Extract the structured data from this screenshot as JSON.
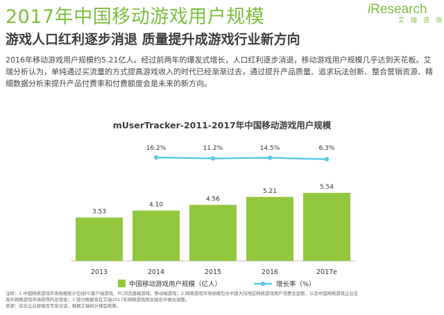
{
  "header": {
    "title": "2017年中国移动游戏用户规模",
    "subtitle": "游戏人口红利逐步消退  质量提升成游戏行业新方向",
    "brand": {
      "word_i": "i",
      "word_rest": "Research",
      "sub": "艾瑞咨询"
    },
    "accent_color": "#7dbf3c"
  },
  "paragraph": "2016年移动游戏用户规模约5.21亿人。经过前两年的爆发式增长，人口红利逐步消退，移动游戏用户规模几乎达到天花板。艾瑞分析认为，单纯通过买流量的方式提高游戏收入的时代已经渐渐过去，通过提升产品质量、追求玩法创新、整合营销资源、精细数据分析来提升产品付费率和付费额度会是未来的新方向。",
  "chart_data": {
    "type": "bar",
    "title": "mUserTracker-2011-2017年中国移动游戏用户规模",
    "categories": [
      "2013",
      "2014",
      "2015",
      "2016",
      "2017e"
    ],
    "series": [
      {
        "name": "中国移动游戏用户规模（亿人）",
        "type": "bar",
        "values": [
          3.53,
          4.1,
          4.56,
          5.21,
          5.54
        ],
        "labels": [
          "3.53",
          "4.10",
          "4.56",
          "5.21",
          "5.54"
        ],
        "color": "#92c83e"
      },
      {
        "name": "增长率（%）",
        "type": "line",
        "values": [
          null,
          16.2,
          11.2,
          14.5,
          6.3
        ],
        "labels": [
          "",
          "16.2%",
          "11.2%",
          "14.5%",
          "6.3%"
        ],
        "color": "#5bc8e8"
      }
    ],
    "legend": {
      "position": "bottom"
    },
    "grid": false
  },
  "footnote": {
    "lines": [
      "注释：1.中国网络游戏市场规模统计包括PC客户端游戏、PC浏览器端游戏、移动端游戏；2.网络游戏市场规模包含中国大陆地区网络游戏用户消费总金额，以及中国网络游戏企业在",
      "海外网络游戏市场获得的总营收；3.部分数据将在艾瑞2017年网络游戏相关报告中做出调整。",
      "来源：综合企业财报及专家访谈，根据艾瑞统计模型核算。"
    ]
  }
}
